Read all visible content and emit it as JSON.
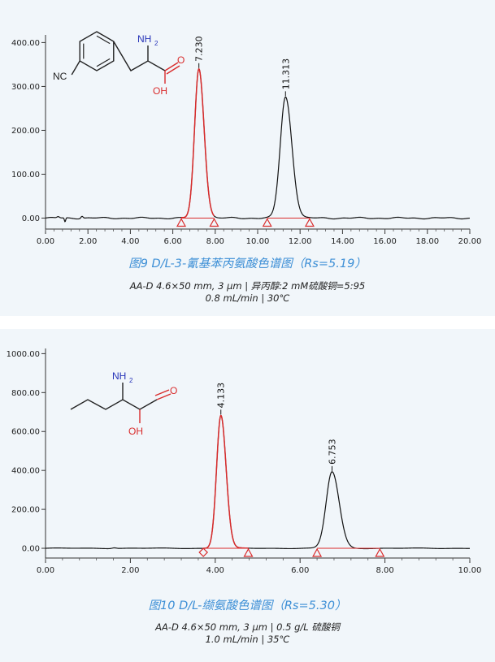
{
  "colors": {
    "panel_bg": "#f1f6fa",
    "title": "#3d8fd6",
    "trace": "#111111",
    "peak_highlight": "#d92b2b",
    "molecule": "#222222",
    "heteroatom_n": "#2633b8",
    "heteroatom_o": "#d92b2b"
  },
  "figures": [
    {
      "title": "图9 D/L-3-氰基苯丙氨酸色谱图（Rs=5.19）",
      "conditions_line1": "AA-D 4.6×50 mm, 3 μm  |  异丙醇:2 mM硫酸铜=5:95",
      "conditions_line2": "0.8 mL/min  |  30℃",
      "molecule_labels": {
        "amine": "NH",
        "amine_sub": "2",
        "carbonyl_o": "O",
        "hydroxyl": "OH",
        "nitrile": "NC"
      }
    },
    {
      "title": "图10 D/L-缬氨酸色谱图（Rs=5.30）",
      "conditions_line1": "AA-D 4.6×50 mm, 3 μm  |  0.5 g/L 硫酸铜",
      "conditions_line2": "1.0 mL/min  |  35℃",
      "molecule_labels": {
        "amine": "NH",
        "amine_sub": "2",
        "carbonyl_o": "O",
        "hydroxyl": "OH"
      }
    }
  ],
  "chart_data": [
    {
      "type": "line",
      "xlim": [
        0,
        20
      ],
      "ylim": [
        -25,
        410
      ],
      "x_ticks": [
        "0.00",
        "2.00",
        "4.00",
        "6.00",
        "8.00",
        "10.00",
        "12.00",
        "14.00",
        "16.00",
        "18.00",
        "20.00"
      ],
      "x_tick_values": [
        0,
        2,
        4,
        6,
        8,
        10,
        12,
        14,
        16,
        18,
        20
      ],
      "y_ticks": [
        "0.00",
        "100.00",
        "200.00",
        "300.00",
        "400.00"
      ],
      "y_tick_values": [
        0,
        100,
        200,
        300,
        400
      ],
      "peaks": [
        {
          "label": "7.230",
          "rt": 7.23,
          "height": 340,
          "sigma": 0.22,
          "start": 6.4,
          "end": 7.95,
          "highlight": true
        },
        {
          "label": "11.313",
          "rt": 11.313,
          "height": 276,
          "sigma": 0.27,
          "start": 10.45,
          "end": 12.45,
          "highlight": false
        }
      ],
      "baseline_markers": [
        6.4,
        7.95,
        10.45,
        12.45
      ],
      "marker_shapes": [
        "triangle",
        "triangle",
        "triangle",
        "triangle"
      ]
    },
    {
      "type": "line",
      "xlim": [
        0,
        10
      ],
      "ylim": [
        -50,
        1010
      ],
      "x_ticks": [
        "0.00",
        "2.00",
        "4.00",
        "6.00",
        "8.00",
        "10.00"
      ],
      "x_tick_values": [
        0,
        2,
        4,
        6,
        8,
        10
      ],
      "y_ticks": [
        "0.00",
        "200.00",
        "400.00",
        "600.00",
        "800.00",
        "1000.00"
      ],
      "y_tick_values": [
        0,
        200,
        400,
        600,
        800,
        1000
      ],
      "peaks": [
        {
          "label": "4.133",
          "rt": 4.133,
          "height": 683,
          "sigma": 0.11,
          "start": 3.72,
          "end": 4.78,
          "highlight": true
        },
        {
          "label": "6.753",
          "rt": 6.753,
          "height": 393,
          "sigma": 0.15,
          "start": 6.4,
          "end": 7.88,
          "highlight": false
        }
      ],
      "baseline_markers": [
        3.72,
        4.78,
        6.4,
        7.88
      ],
      "marker_shapes": [
        "diamond",
        "triangle",
        "triangle",
        "triangle"
      ]
    }
  ]
}
